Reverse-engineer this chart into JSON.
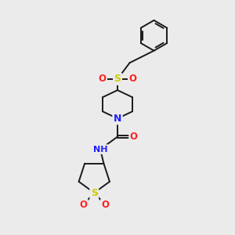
{
  "bg_color": "#ebebeb",
  "bond_color": "#1a1a1a",
  "atom_colors": {
    "N": "#2020ff",
    "O": "#ff2020",
    "S": "#cccc00",
    "H_gray": "#888888"
  },
  "figsize": [
    3.0,
    3.0
  ],
  "dpi": 100,
  "scale": 30
}
